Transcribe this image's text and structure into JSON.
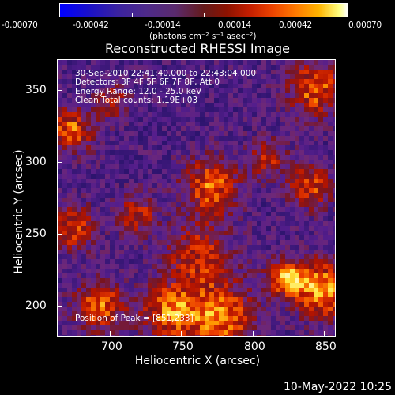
{
  "colorbar": {
    "tick_labels": [
      "-0.00070",
      "-0.00042",
      "-0.00014",
      "0.00014",
      "0.00042",
      "0.00070"
    ],
    "units_label": "(photons cm⁻² s⁻¹ asec⁻²)"
  },
  "image": {
    "title": "Reconstructed RHESSI Image",
    "annotations": [
      "30-Sep-2010 22:41:40.000 to 22:43:04.000",
      "Detectors: 3F 4F 5F 6F 7F 8F, Att 0",
      "Energy Range: 12.0 - 25.0 keV",
      "Clean     Total counts: 1.19E+03"
    ],
    "peak_label": "Position of Peak = [851,233]",
    "x_axis": {
      "label": "Heliocentric X (arcsec)",
      "ticks": [
        "700",
        "750",
        "800",
        "850"
      ],
      "range": [
        664,
        856
      ]
    },
    "y_axis": {
      "label": "Heliocentric Y (arcsec)",
      "ticks": [
        "200",
        "250",
        "300",
        "350"
      ],
      "range": [
        180,
        372
      ]
    }
  },
  "footer": {
    "timestamp": "10-May-2022 10:25"
  }
}
